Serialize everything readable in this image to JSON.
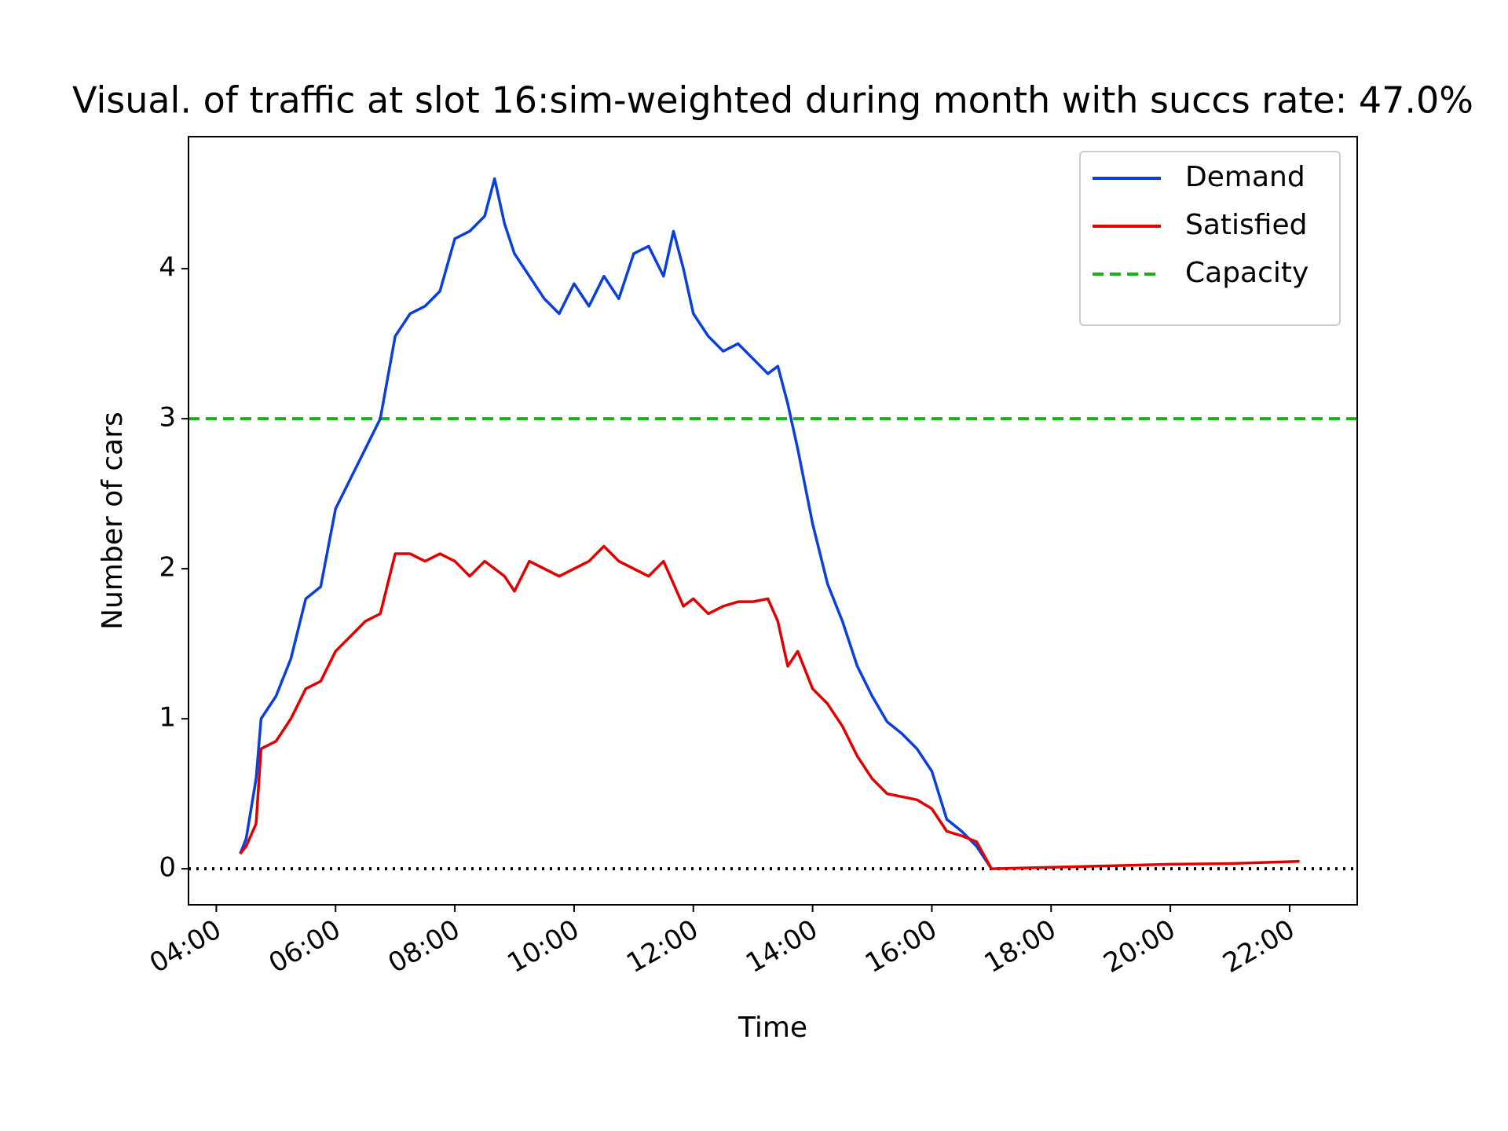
{
  "chart_data": {
    "type": "line",
    "title": "Visual. of traffic at slot 16:sim-weighted during month with succs rate: 47.0%",
    "x_label": "Time",
    "y_label": "Number of cars",
    "x": [
      "04:24",
      "04:30",
      "04:40",
      "04:45",
      "05:00",
      "05:15",
      "05:30",
      "05:45",
      "06:00",
      "06:15",
      "06:30",
      "06:45",
      "07:00",
      "07:15",
      "07:30",
      "07:45",
      "08:00",
      "08:15",
      "08:30",
      "08:40",
      "08:50",
      "09:00",
      "09:15",
      "09:30",
      "09:45",
      "10:00",
      "10:15",
      "10:30",
      "10:45",
      "11:00",
      "11:15",
      "11:30",
      "11:40",
      "11:50",
      "12:00",
      "12:15",
      "12:30",
      "12:45",
      "13:00",
      "13:15",
      "13:25",
      "13:35",
      "13:45",
      "14:00",
      "14:15",
      "14:30",
      "14:45",
      "15:00",
      "15:15",
      "15:30",
      "15:45",
      "16:00",
      "16:15",
      "16:30",
      "16:45",
      "17:00",
      "18:00",
      "19:00",
      "20:00",
      "21:00",
      "22:10"
    ],
    "series": [
      {
        "name": "Demand",
        "color": "#0b3fdc",
        "values": [
          0.1,
          0.2,
          0.6,
          1.0,
          1.15,
          1.4,
          1.8,
          1.88,
          2.4,
          2.6,
          2.8,
          3.0,
          3.55,
          3.7,
          3.75,
          3.85,
          4.2,
          4.25,
          4.35,
          4.6,
          4.3,
          4.1,
          3.95,
          3.8,
          3.7,
          3.9,
          3.75,
          3.95,
          3.8,
          4.1,
          4.15,
          3.95,
          4.25,
          4.0,
          3.7,
          3.55,
          3.45,
          3.5,
          3.4,
          3.3,
          3.35,
          3.1,
          2.8,
          2.3,
          1.9,
          1.65,
          1.35,
          1.15,
          0.98,
          0.9,
          0.8,
          0.65,
          0.33,
          0.25,
          0.15,
          0.0,
          null,
          null,
          null,
          null,
          null
        ]
      },
      {
        "name": "Satisfied",
        "color": "#e00000",
        "values": [
          0.1,
          0.15,
          0.3,
          0.8,
          0.85,
          1.0,
          1.2,
          1.25,
          1.45,
          1.55,
          1.65,
          1.7,
          2.1,
          2.1,
          2.05,
          2.1,
          2.05,
          1.95,
          2.05,
          2.0,
          1.95,
          1.85,
          2.05,
          2.0,
          1.95,
          2.0,
          2.05,
          2.15,
          2.05,
          2.0,
          1.95,
          2.05,
          1.9,
          1.75,
          1.8,
          1.7,
          1.75,
          1.78,
          1.78,
          1.8,
          1.65,
          1.35,
          1.45,
          1.2,
          1.1,
          0.95,
          0.75,
          0.6,
          0.5,
          0.48,
          0.46,
          0.4,
          0.25,
          0.22,
          0.18,
          0.0,
          0.01,
          0.02,
          0.03,
          0.035,
          0.05
        ]
      }
    ],
    "hlines": [
      {
        "name": "Capacity",
        "value": 3,
        "color": "#17b017",
        "style": "dashed"
      },
      {
        "value": 0,
        "color": "#000000",
        "style": "dotted"
      }
    ],
    "xlim": [
      "03:32",
      "23:08"
    ],
    "xticks": [
      "04:00",
      "06:00",
      "08:00",
      "10:00",
      "12:00",
      "14:00",
      "16:00",
      "18:00",
      "20:00",
      "22:00"
    ],
    "ylim": [
      -0.24,
      4.88
    ],
    "yticks": [
      0,
      1,
      2,
      3,
      4
    ],
    "legend": "upper right"
  }
}
